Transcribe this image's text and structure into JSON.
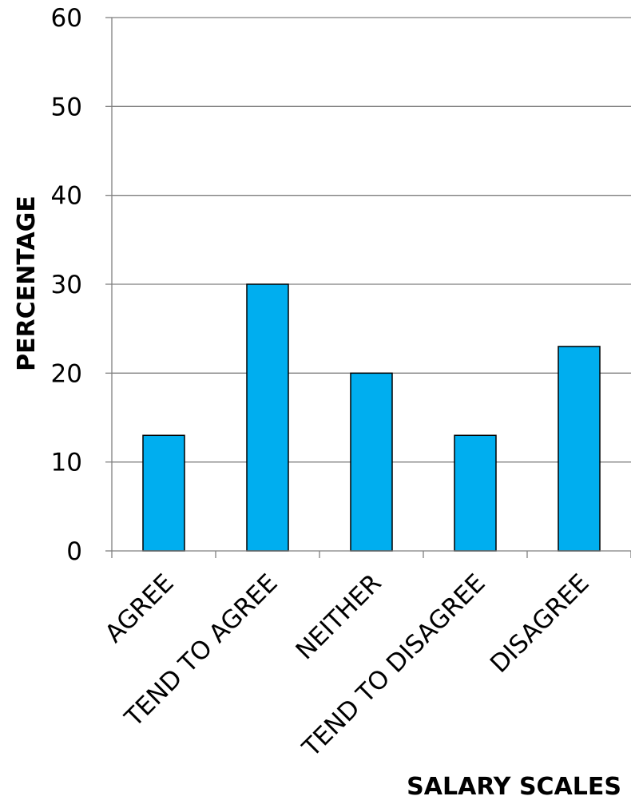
{
  "chart_data": {
    "type": "bar",
    "categories": [
      "AGREE",
      "TEND TO AGREE",
      "NEITHER",
      "TEND TO DISAGREE",
      "DISAGREE"
    ],
    "series": [
      {
        "values": [
          13,
          30,
          20,
          13,
          23
        ]
      }
    ],
    "xlabel": "SALARY SCALES",
    "ylabel": "PERCENTAGE",
    "ylim": [
      0,
      60
    ],
    "yticks": [
      0,
      10,
      20,
      30,
      40,
      50,
      60
    ],
    "grid": true,
    "bar_color": "#00aeef",
    "bar_edge_color": "#000000",
    "grid_color": "#7f7f7f"
  }
}
